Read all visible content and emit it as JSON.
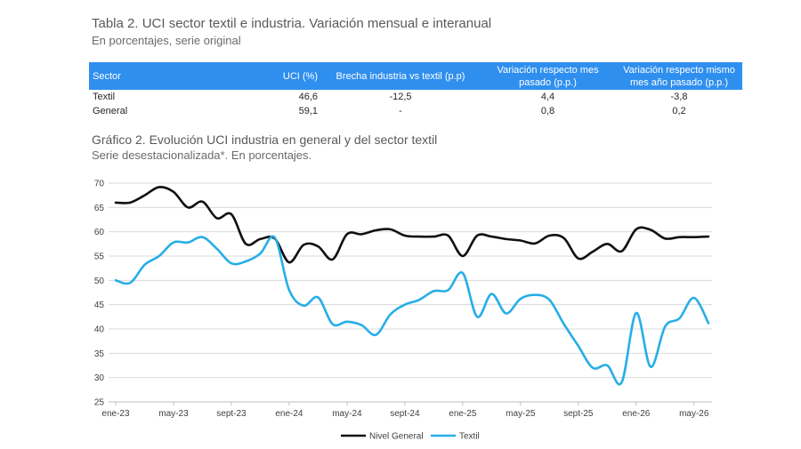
{
  "table": {
    "title": "Tabla 2. UCI sector textil e industria. Variación mensual e interanual",
    "subtitle": "En porcentajes, serie original",
    "headers": [
      "Sector",
      "UCI (%)",
      "Brecha industria vs textil (p.p)",
      "Variación respecto mes pasado (p.p.)",
      "Variación respecto mismo mes año pasado (p.p.)"
    ],
    "rows": [
      [
        "Textil",
        "46,6",
        "-12,5",
        "4,4",
        "-3,8"
      ],
      [
        "General",
        "59,1",
        "-",
        "0,8",
        "0,2"
      ]
    ]
  },
  "chart_title": "Gráfico 2. Evolución UCI industria en general y del sector textil",
  "chart_subtitle": "Serie desestacionalizada*. En porcentajes.",
  "colors": {
    "header_bg": "#2f8fef",
    "general": "#111111",
    "textil": "#27aee6",
    "grid": "#d9d9d9"
  },
  "chart_data": {
    "type": "line",
    "x": [
      "ene-23",
      "feb-23",
      "mar-23",
      "abr-23",
      "may-23",
      "jun-23",
      "jul-23",
      "ago-23",
      "sept-23",
      "oct-23",
      "nov-23",
      "dic-23",
      "ene-24",
      "feb-24",
      "mar-24",
      "abr-24",
      "may-24",
      "jun-24",
      "jul-24",
      "ago-24",
      "sept-24",
      "oct-24",
      "nov-24",
      "dic-24",
      "ene-25",
      "feb-25",
      "mar-25",
      "abr-25",
      "may-25",
      "jun-25",
      "jul-25",
      "ago-25",
      "sept-25",
      "oct-25",
      "nov-25",
      "dic-25",
      "ene-26",
      "feb-26",
      "mar-26",
      "abr-26",
      "may-26",
      "jun-26"
    ],
    "x_tick_labels": [
      "ene-23",
      "may-23",
      "sept-23",
      "ene-24",
      "may-24",
      "sept-24",
      "ene-25",
      "may-25",
      "sept-25",
      "ene-26",
      "may-26"
    ],
    "x_tick_indices": [
      0,
      4,
      8,
      12,
      16,
      20,
      24,
      28,
      32,
      36,
      40
    ],
    "ylim": [
      25,
      70
    ],
    "yticks": [
      25,
      30,
      35,
      40,
      45,
      50,
      55,
      60,
      65,
      70
    ],
    "grid": true,
    "legend": "bottom-center",
    "series": [
      {
        "name": "Nivel General",
        "values": [
          66,
          66,
          67.5,
          69.2,
          68.2,
          65,
          66.2,
          62.8,
          63.6,
          57.5,
          58.5,
          58.6,
          53.7,
          57.3,
          57,
          54.3,
          59.5,
          59.5,
          60.3,
          60.5,
          59.2,
          59,
          59,
          59.2,
          55,
          59.2,
          59,
          58.5,
          58.2,
          57.6,
          59.2,
          58.7,
          54.5,
          55.9,
          57.5,
          56,
          60.5,
          60.4,
          58.6,
          58.9,
          58.9,
          59
        ]
      },
      {
        "name": "Textil",
        "values": [
          50,
          49.5,
          53.2,
          55,
          57.8,
          57.8,
          58.9,
          56.5,
          53.5,
          53.9,
          55.5,
          58.8,
          48,
          44.8,
          46.5,
          41,
          41.5,
          40.8,
          38.8,
          43,
          45,
          46,
          47.8,
          48,
          51.5,
          42.5,
          47.2,
          43.2,
          46.2,
          47,
          46,
          41,
          36.5,
          32,
          32.5,
          29,
          43.3,
          32.2,
          40.5,
          42.2,
          46.4,
          41.2
        ]
      }
    ]
  }
}
